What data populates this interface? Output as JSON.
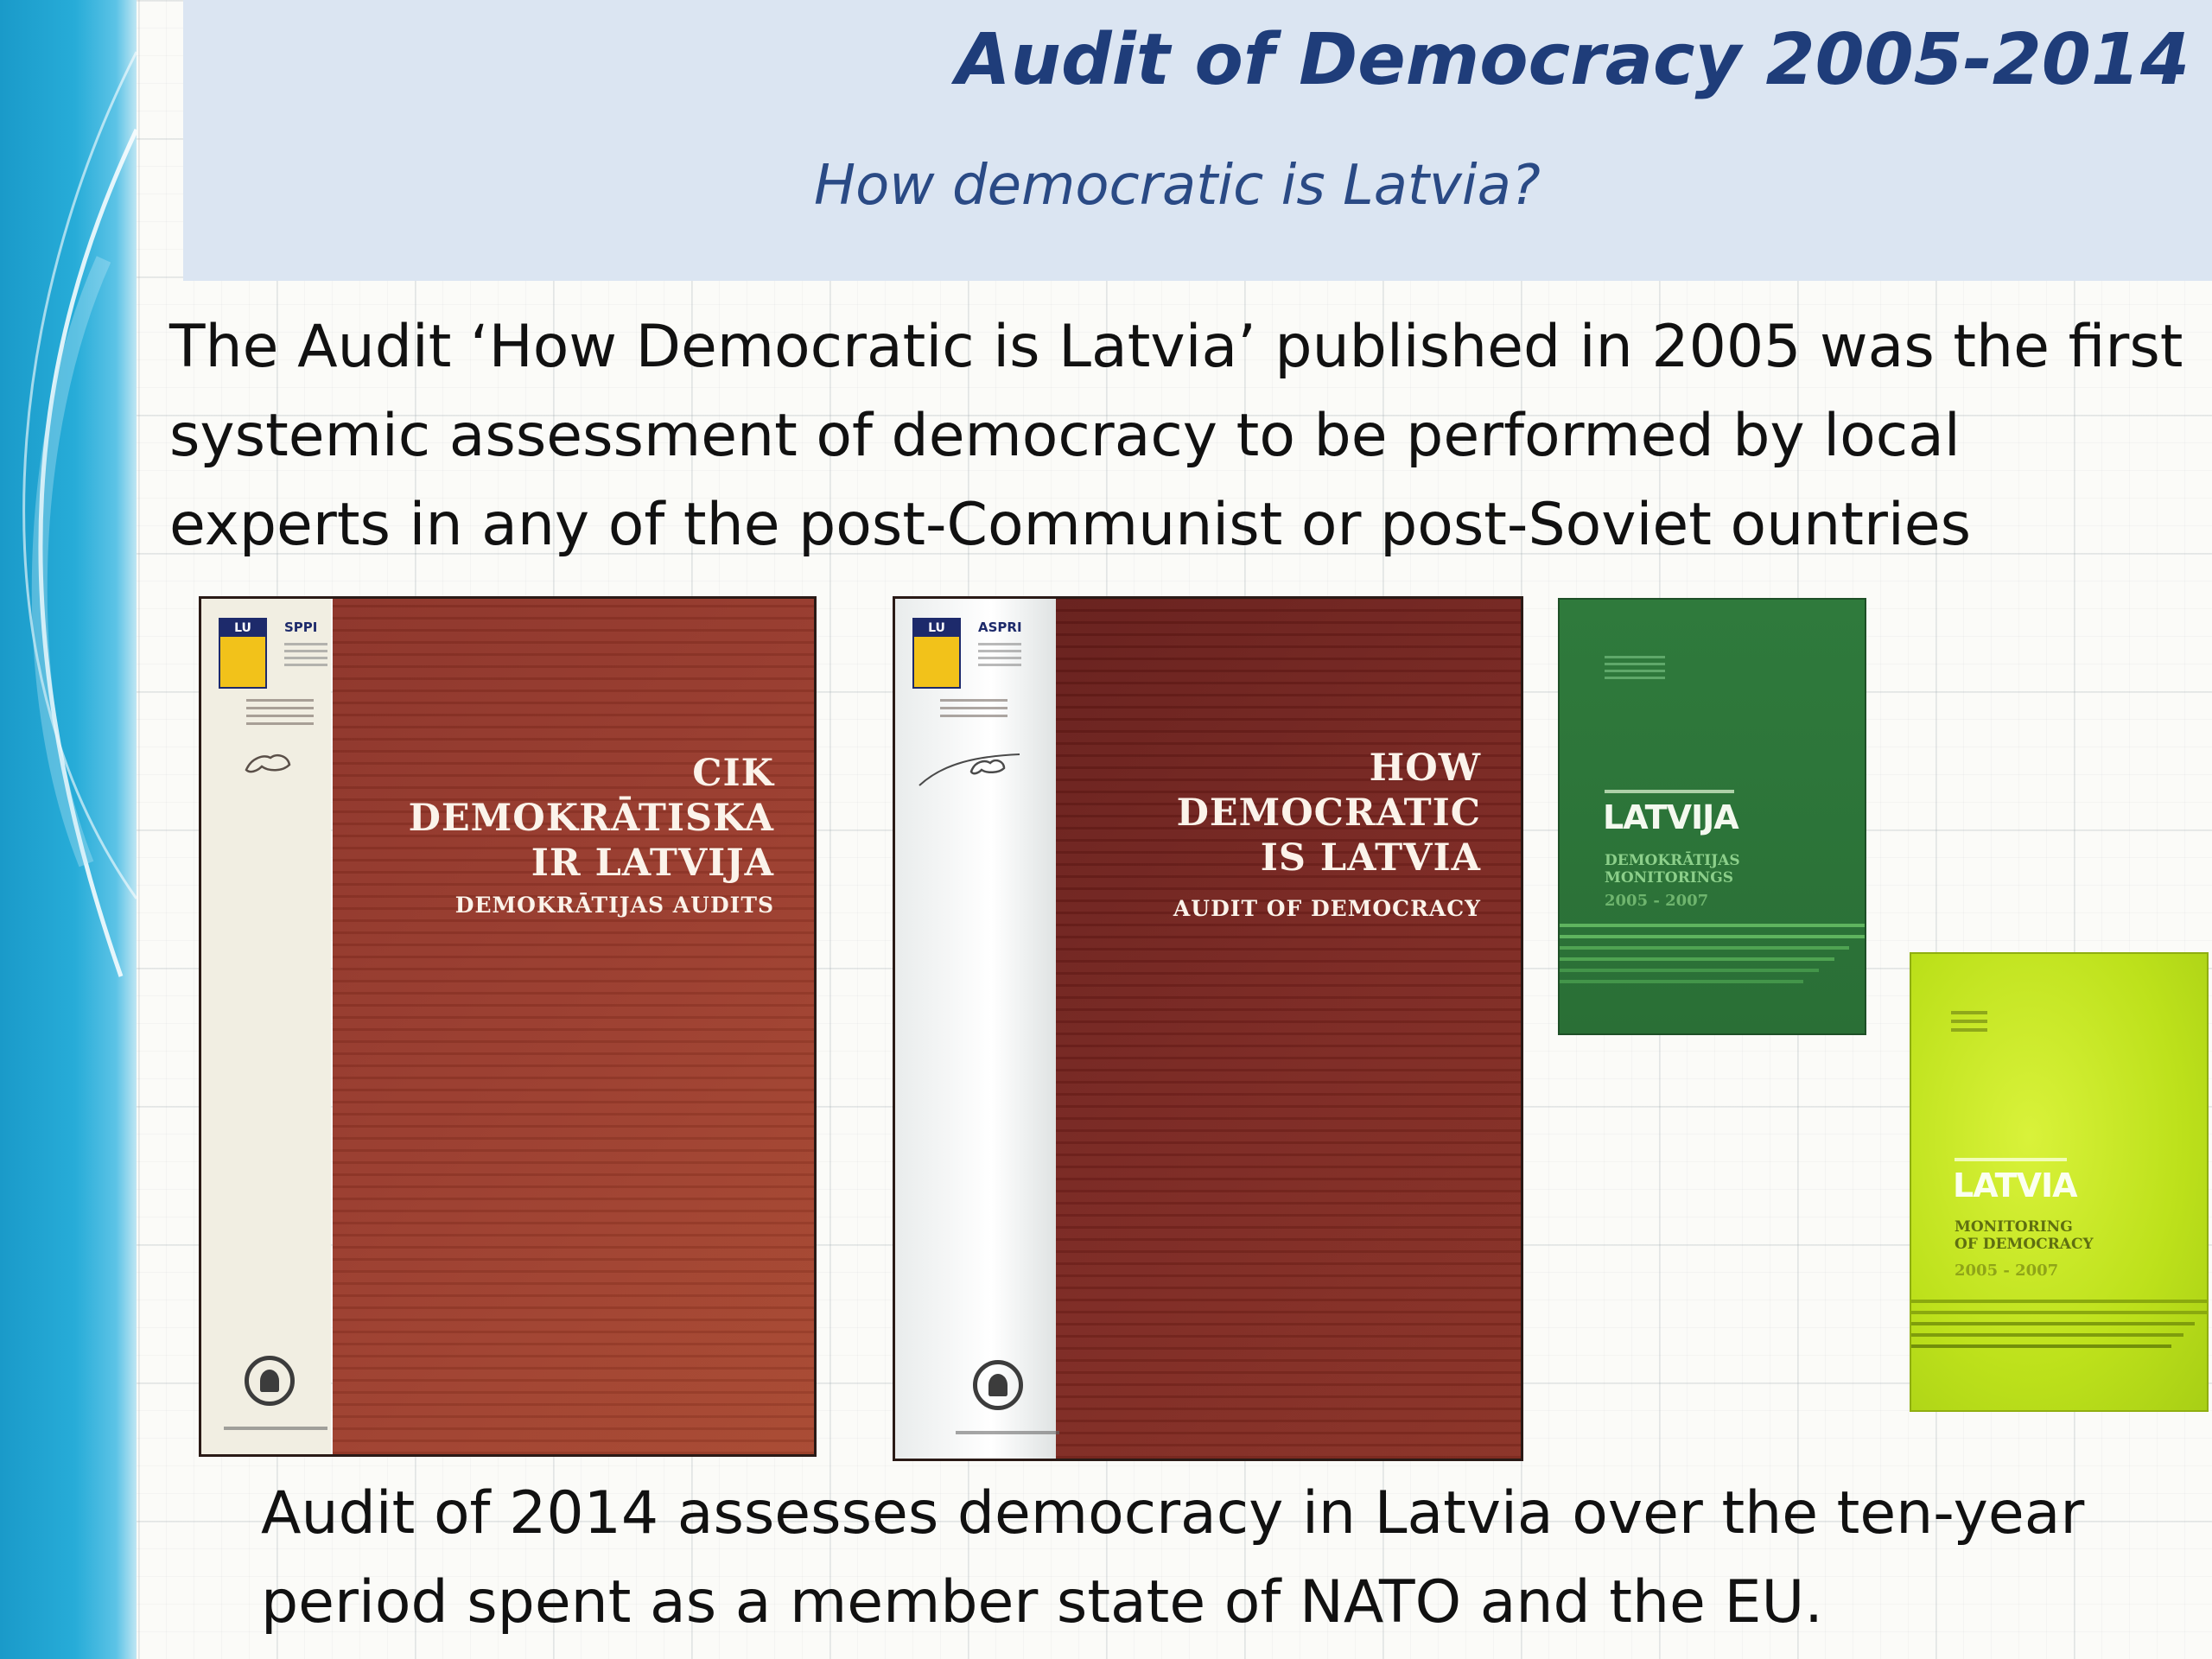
{
  "slide": {
    "title": "Audit of Democracy 2005-2014",
    "subtitle": "How democratic is Latvia?",
    "intro_text": "The Audit ‘How Democratic is Latvia’ published in 2005 was the first systemic assessment of democracy to be performed by local experts in any of the post-Communist or post-Soviet ountries",
    "closing_text": "Audit of 2014 assesses democracy in Latvia over the ten-year period spent as a member state of NATO and the EU."
  },
  "books": [
    {
      "logo_badge": "LU",
      "logo_name": "SPPI",
      "title_line1": "CIK DEMOKRĀTISKA",
      "title_line2": "IR LATVIJA",
      "subtitle": "DEMOKRĀTIJAS AUDITS",
      "cover_color": "#9a3b2c"
    },
    {
      "logo_badge": "LU",
      "logo_name": "ASPRI",
      "title_line1": "HOW DEMOCRATIC",
      "title_line2": "IS LATVIA",
      "subtitle": "AUDIT OF DEMOCRACY",
      "cover_color": "#7a2620"
    },
    {
      "title": "LATVIJA",
      "subtitle_line1": "DEMOKRĀTIJAS",
      "subtitle_line2": "MONITORINGS",
      "years": "2005 - 2007",
      "cover_color": "#2f7a3c"
    },
    {
      "title": "LATVIA",
      "subtitle_line1": "MONITORING",
      "subtitle_line2": "OF DEMOCRACY",
      "years": "2005 - 2007",
      "cover_color": "#c8e82a"
    }
  ],
  "colors": {
    "title": "#1f3d7a",
    "header_band": "#dbe5f2",
    "side_band": "#27acd8"
  }
}
